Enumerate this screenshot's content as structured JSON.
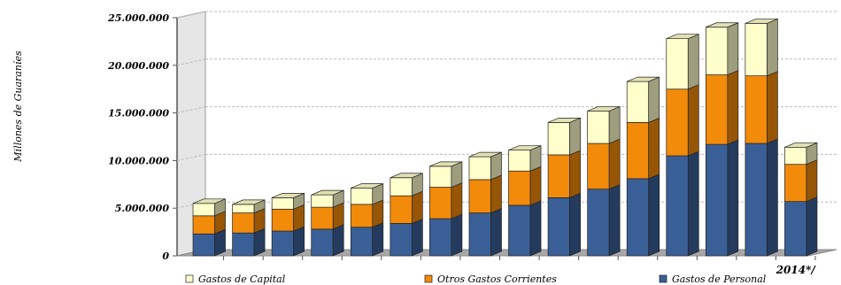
{
  "chart_data": {
    "type": "bar",
    "stacked": true,
    "three_d": true,
    "title": "",
    "xlabel": "",
    "ylabel": "Millones de Guaraníes",
    "ylim": [
      0,
      25000000
    ],
    "y_ticks": [
      "0",
      "5.000.000",
      "10.000.000",
      "15.000.000",
      "20.000.000",
      "25.000.000"
    ],
    "grid": true,
    "legend_position": "bottom",
    "categories": [
      "",
      "",
      "",
      "",
      "",
      "",
      "",
      "",
      "",
      "",
      "",
      "",
      "",
      "",
      "",
      "2014*/"
    ],
    "series": [
      {
        "name": "Gastos de Personal",
        "color": "#3a5f96",
        "values": [
          2300000,
          2400000,
          2600000,
          2800000,
          3000000,
          3400000,
          3900000,
          4500000,
          5300000,
          6100000,
          7000000,
          8100000,
          10500000,
          11700000,
          11800000,
          5700000
        ]
      },
      {
        "name": "Otros Gastos Corrientes",
        "color": "#f28a0a",
        "values": [
          1900000,
          2100000,
          2300000,
          2300000,
          2400000,
          2900000,
          3300000,
          3500000,
          3600000,
          4500000,
          4800000,
          5900000,
          7000000,
          7300000,
          7100000,
          3900000
        ]
      },
      {
        "name": "Gastos de Capital",
        "color": "#ffffcc",
        "values": [
          1300000,
          900000,
          1200000,
          1300000,
          1700000,
          1900000,
          2200000,
          2400000,
          2200000,
          3400000,
          3400000,
          4300000,
          5300000,
          5000000,
          5500000,
          1800000
        ]
      }
    ]
  }
}
